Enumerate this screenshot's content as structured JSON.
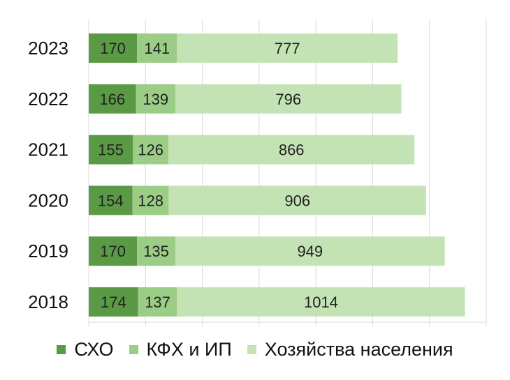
{
  "chart_data": {
    "type": "bar",
    "orientation": "horizontal",
    "stacked": true,
    "categories": [
      "2023",
      "2022",
      "2021",
      "2020",
      "2019",
      "2018"
    ],
    "series": [
      {
        "name": "СХО",
        "color": "#5b9a45",
        "values": [
          170,
          166,
          155,
          154,
          170,
          174
        ]
      },
      {
        "name": "КФХ и ИП",
        "color": "#9ccd87",
        "values": [
          141,
          139,
          126,
          128,
          135,
          137
        ]
      },
      {
        "name": "Хозяйства населения",
        "color": "#c4e3b5",
        "values": [
          777,
          796,
          866,
          906,
          949,
          1014
        ]
      }
    ],
    "title": "",
    "xlabel": "",
    "ylabel": "",
    "xlim": [
      0,
      1400
    ],
    "grid": true,
    "legend": "bottom",
    "data_labels": true
  }
}
